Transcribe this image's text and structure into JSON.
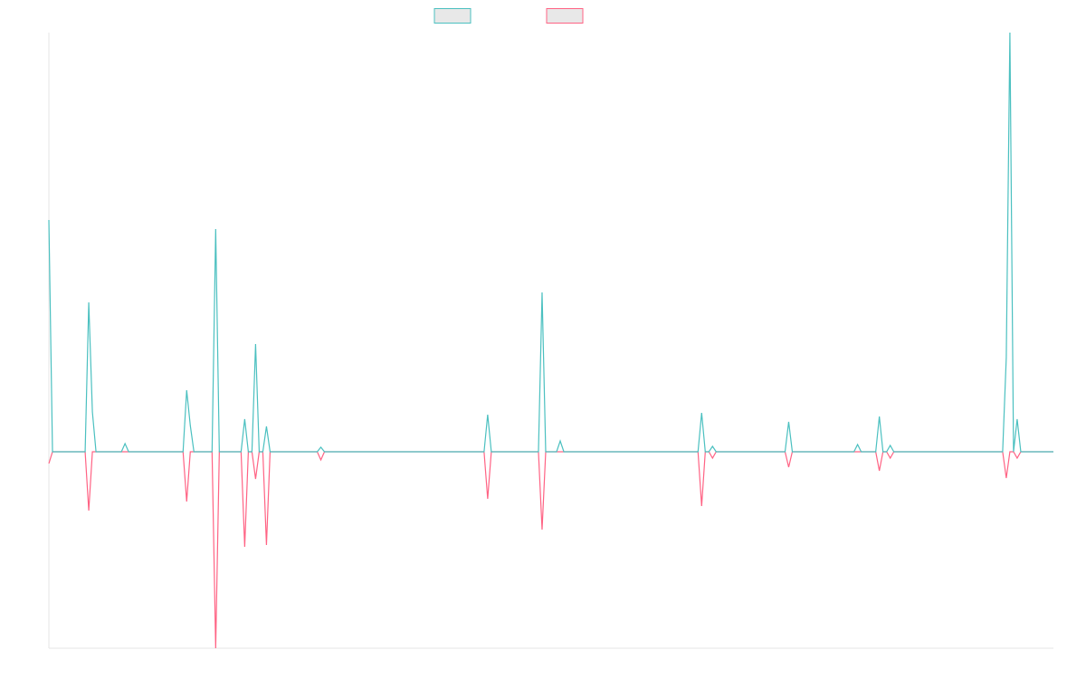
{
  "chart_data": {
    "type": "line",
    "ylim": [
      -217,
      463
    ],
    "series": [
      {
        "color": "#ff6384",
        "values": [
          -13,
          0,
          0,
          0,
          0,
          0,
          0,
          0,
          0,
          0,
          0,
          -65,
          0,
          0,
          0,
          0,
          0,
          0,
          0,
          0,
          0,
          0,
          0,
          0,
          0,
          0,
          0,
          0,
          0,
          0,
          0,
          0,
          0,
          0,
          0,
          0,
          0,
          0,
          -55,
          0,
          0,
          0,
          0,
          0,
          0,
          0,
          -217,
          0,
          0,
          0,
          0,
          0,
          0,
          0,
          -105,
          0,
          0,
          -30,
          0,
          0,
          -103,
          0,
          0,
          0,
          0,
          0,
          0,
          0,
          0,
          0,
          0,
          0,
          0,
          0,
          0,
          -9,
          0,
          0,
          0,
          0,
          0,
          0,
          0,
          0,
          0,
          0,
          0,
          0,
          0,
          0,
          0,
          0,
          0,
          0,
          0,
          0,
          0,
          0,
          0,
          0,
          0,
          0,
          0,
          0,
          0,
          0,
          0,
          0,
          0,
          0,
          0,
          0,
          0,
          0,
          0,
          0,
          0,
          0,
          0,
          0,
          0,
          -52,
          0,
          0,
          0,
          0,
          0,
          0,
          0,
          0,
          0,
          0,
          0,
          0,
          0,
          0,
          -86,
          0,
          0,
          0,
          0,
          0,
          0,
          0,
          0,
          0,
          0,
          0,
          0,
          0,
          0,
          0,
          0,
          0,
          0,
          0,
          0,
          0,
          0,
          0,
          0,
          0,
          0,
          0,
          0,
          0,
          0,
          0,
          0,
          0,
          0,
          0,
          0,
          0,
          0,
          0,
          0,
          0,
          0,
          0,
          -60,
          0,
          0,
          -7,
          0,
          0,
          0,
          0,
          0,
          0,
          0,
          0,
          0,
          0,
          0,
          0,
          0,
          0,
          0,
          0,
          0,
          0,
          0,
          0,
          -17,
          0,
          0,
          0,
          0,
          0,
          0,
          0,
          0,
          0,
          0,
          0,
          0,
          0,
          0,
          0,
          0,
          0,
          0,
          0,
          0,
          0,
          0,
          0,
          0,
          -21,
          0,
          0,
          -7,
          0,
          0,
          0,
          0,
          0,
          0,
          0,
          0,
          0,
          0,
          0,
          0,
          0,
          0,
          0,
          0,
          0,
          0,
          0,
          0,
          0,
          0,
          0,
          0,
          0,
          0,
          0,
          0,
          0,
          0,
          0,
          -29,
          0,
          0,
          -7,
          0,
          0,
          0,
          0,
          0,
          0,
          0,
          0,
          0,
          0
        ]
      },
      {
        "color": "#4bc0c0",
        "values": [
          256,
          0,
          0,
          0,
          0,
          0,
          0,
          0,
          0,
          0,
          0,
          165,
          44,
          0,
          0,
          0,
          0,
          0,
          0,
          0,
          0,
          9,
          0,
          0,
          0,
          0,
          0,
          0,
          0,
          0,
          0,
          0,
          0,
          0,
          0,
          0,
          0,
          0,
          68,
          29,
          0,
          0,
          0,
          0,
          0,
          0,
          246,
          0,
          0,
          0,
          0,
          0,
          0,
          0,
          36,
          0,
          0,
          119,
          0,
          0,
          28,
          0,
          0,
          0,
          0,
          0,
          0,
          0,
          0,
          0,
          0,
          0,
          0,
          0,
          0,
          5,
          0,
          0,
          0,
          0,
          0,
          0,
          0,
          0,
          0,
          0,
          0,
          0,
          0,
          0,
          0,
          0,
          0,
          0,
          0,
          0,
          0,
          0,
          0,
          0,
          0,
          0,
          0,
          0,
          0,
          0,
          0,
          0,
          0,
          0,
          0,
          0,
          0,
          0,
          0,
          0,
          0,
          0,
          0,
          0,
          0,
          41,
          0,
          0,
          0,
          0,
          0,
          0,
          0,
          0,
          0,
          0,
          0,
          0,
          0,
          0,
          176,
          0,
          0,
          0,
          0,
          12,
          0,
          0,
          0,
          0,
          0,
          0,
          0,
          0,
          0,
          0,
          0,
          0,
          0,
          0,
          0,
          0,
          0,
          0,
          0,
          0,
          0,
          0,
          0,
          0,
          0,
          0,
          0,
          0,
          0,
          0,
          0,
          0,
          0,
          0,
          0,
          0,
          0,
          0,
          43,
          0,
          0,
          6,
          0,
          0,
          0,
          0,
          0,
          0,
          0,
          0,
          0,
          0,
          0,
          0,
          0,
          0,
          0,
          0,
          0,
          0,
          0,
          0,
          33,
          0,
          0,
          0,
          0,
          0,
          0,
          0,
          0,
          0,
          0,
          0,
          0,
          0,
          0,
          0,
          0,
          0,
          0,
          8,
          0,
          0,
          0,
          0,
          0,
          39,
          0,
          0,
          7,
          0,
          0,
          0,
          0,
          0,
          0,
          0,
          0,
          0,
          0,
          0,
          0,
          0,
          0,
          0,
          0,
          0,
          0,
          0,
          0,
          0,
          0,
          0,
          0,
          0,
          0,
          0,
          0,
          0,
          0,
          0,
          104,
          463,
          0,
          36,
          0,
          0,
          0,
          0,
          0,
          0,
          0,
          0,
          0,
          0
        ]
      }
    ]
  }
}
